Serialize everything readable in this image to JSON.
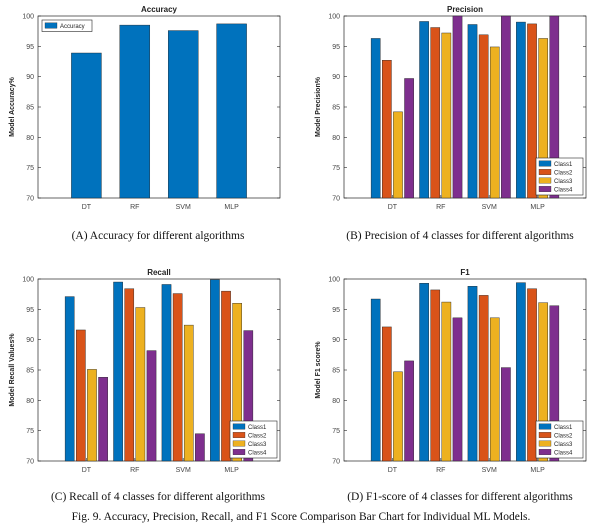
{
  "figure_caption": "Fig. 9. Accuracy, Precision, Recall, and F1 Score Comparison Bar Chart for Individual ML Models.",
  "colors": {
    "Accuracy": "#0072BD",
    "Class1": "#0072BD",
    "Class2": "#D95319",
    "Class3": "#EDB120",
    "Class4": "#7E2F8E"
  },
  "chart_data": [
    {
      "type": "bar",
      "title": "Accuracy",
      "ylabel": "Model Accuracy%",
      "caption": "(A)  Accuracy for different algorithms",
      "categories": [
        "DT",
        "RF",
        "SVM",
        "MLP"
      ],
      "ylim": [
        70,
        100
      ],
      "yticks": [
        70,
        75,
        80,
        85,
        90,
        95,
        100
      ],
      "legend_placement": "top-left",
      "series": [
        {
          "name": "Accuracy",
          "values": [
            93.9,
            98.5,
            97.6,
            98.7
          ]
        }
      ]
    },
    {
      "type": "bar",
      "title": "Precision",
      "ylabel": "Model Precision%",
      "caption": "(B)  Precision of 4 classes for different algorithms",
      "categories": [
        "DT",
        "RF",
        "SVM",
        "MLP"
      ],
      "ylim": [
        70,
        100
      ],
      "yticks": [
        70,
        75,
        80,
        85,
        90,
        95,
        100
      ],
      "legend_placement": "bottom-right",
      "series": [
        {
          "name": "Class1",
          "values": [
            96.3,
            99.1,
            98.6,
            99.0
          ]
        },
        {
          "name": "Class2",
          "values": [
            92.7,
            98.1,
            96.9,
            98.7
          ]
        },
        {
          "name": "Class3",
          "values": [
            84.2,
            97.2,
            94.9,
            96.3
          ]
        },
        {
          "name": "Class4",
          "values": [
            89.7,
            100,
            100,
            100
          ]
        }
      ]
    },
    {
      "type": "bar",
      "title": "Recall",
      "ylabel": "Model Recall Values%",
      "caption": "(C)  Recall of 4 classes for different algorithms",
      "categories": [
        "DT",
        "RF",
        "SVM",
        "MLP"
      ],
      "ylim": [
        70,
        100
      ],
      "yticks": [
        70,
        75,
        80,
        85,
        90,
        95,
        100
      ],
      "legend_placement": "bottom-right",
      "series": [
        {
          "name": "Class1",
          "values": [
            97.1,
            99.5,
            99.1,
            99.9
          ]
        },
        {
          "name": "Class2",
          "values": [
            91.6,
            98.4,
            97.6,
            98.0
          ]
        },
        {
          "name": "Class3",
          "values": [
            85.1,
            95.3,
            92.4,
            96.0
          ]
        },
        {
          "name": "Class4",
          "values": [
            83.8,
            88.2,
            74.5,
            91.5
          ]
        }
      ]
    },
    {
      "type": "bar",
      "title": "F1",
      "ylabel": "Model F1 score%",
      "caption": "(D)  F1-score of 4 classes for different algorithms",
      "categories": [
        "DT",
        "RF",
        "SVM",
        "MLP"
      ],
      "ylim": [
        70,
        100
      ],
      "yticks": [
        70,
        75,
        80,
        85,
        90,
        95,
        100
      ],
      "legend_placement": "bottom-right",
      "series": [
        {
          "name": "Class1",
          "values": [
            96.7,
            99.3,
            98.8,
            99.4
          ]
        },
        {
          "name": "Class2",
          "values": [
            92.1,
            98.2,
            97.3,
            98.4
          ]
        },
        {
          "name": "Class3",
          "values": [
            84.7,
            96.2,
            93.6,
            96.1
          ]
        },
        {
          "name": "Class4",
          "values": [
            86.5,
            93.6,
            85.4,
            95.6
          ]
        }
      ]
    }
  ]
}
